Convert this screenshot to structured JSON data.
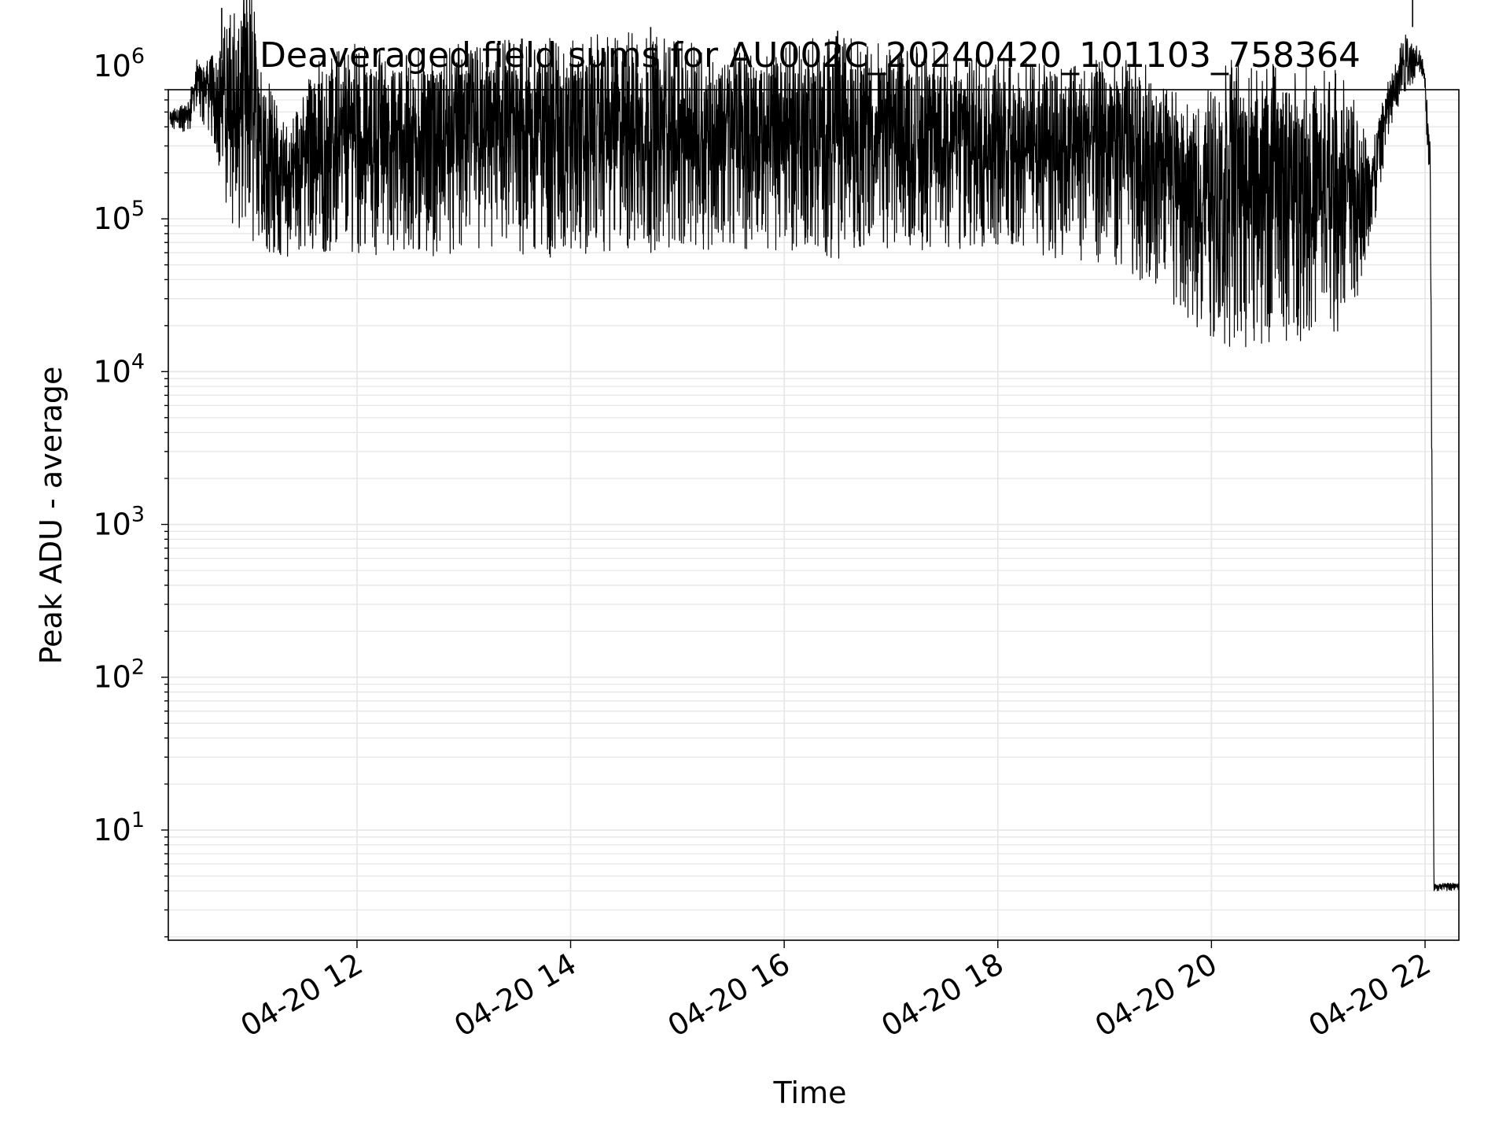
{
  "chart_data": {
    "type": "line",
    "title": "Deaveraged field sums for AU002C_20240420_101103_758364",
    "xlabel": "Time",
    "ylabel": "Peak ADU - average",
    "xscale": "time",
    "yscale": "log",
    "xlim": [
      "2024-04-20T10:14",
      "2024-04-20T22:19"
    ],
    "ylim": [
      1.9,
      700000
    ],
    "x_ticks": [
      {
        "t": "2024-04-20T12:00",
        "label": "04-20 12"
      },
      {
        "t": "2024-04-20T14:00",
        "label": "04-20 14"
      },
      {
        "t": "2024-04-20T16:00",
        "label": "04-20 16"
      },
      {
        "t": "2024-04-20T18:00",
        "label": "04-20 18"
      },
      {
        "t": "2024-04-20T20:00",
        "label": "04-20 20"
      },
      {
        "t": "2024-04-20T22:00",
        "label": "04-20 22"
      }
    ],
    "y_ticks": [
      {
        "value": 10,
        "base": "10",
        "exp": "1"
      },
      {
        "value": 100,
        "base": "10",
        "exp": "2"
      },
      {
        "value": 1000,
        "base": "10",
        "exp": "3"
      },
      {
        "value": 10000,
        "base": "10",
        "exp": "4"
      },
      {
        "value": 100000,
        "base": "10",
        "exp": "5"
      },
      {
        "value": 1000000,
        "base": "10",
        "exp": "6"
      }
    ],
    "grid": true,
    "line_color": "#000000",
    "grid_color": "#e6e6e6",
    "series": [
      {
        "envelope": [
          {
            "t": "2024-04-20T10:15",
            "low": 380000,
            "high": 520000
          },
          {
            "t": "2024-04-20T10:25",
            "low": 350000,
            "high": 600000
          },
          {
            "t": "2024-04-20T10:30",
            "low": 500000,
            "high": 1100000
          },
          {
            "t": "2024-04-20T10:40",
            "low": 300000,
            "high": 1300000
          },
          {
            "t": "2024-04-20T10:50",
            "low": 80000,
            "high": 2500000
          },
          {
            "t": "2024-04-20T11:00",
            "low": 60000,
            "high": 3500000
          },
          {
            "t": "2024-04-20T11:10",
            "low": 60000,
            "high": 900000
          },
          {
            "t": "2024-04-20T11:20",
            "low": 55000,
            "high": 400000
          },
          {
            "t": "2024-04-20T11:30",
            "low": 60000,
            "high": 700000
          },
          {
            "t": "2024-04-20T11:40",
            "low": 60000,
            "high": 1300000
          },
          {
            "t": "2024-04-20T12:00",
            "low": 60000,
            "high": 1400000
          },
          {
            "t": "2024-04-20T12:30",
            "low": 55000,
            "high": 1300000
          },
          {
            "t": "2024-04-20T13:00",
            "low": 60000,
            "high": 1400000
          },
          {
            "t": "2024-04-20T13:30",
            "low": 55000,
            "high": 1500000
          },
          {
            "t": "2024-04-20T14:00",
            "low": 55000,
            "high": 1600000
          },
          {
            "t": "2024-04-20T14:30",
            "low": 60000,
            "high": 1700000
          },
          {
            "t": "2024-04-20T15:00",
            "low": 60000,
            "high": 1500000
          },
          {
            "t": "2024-04-20T15:30",
            "low": 65000,
            "high": 1300000
          },
          {
            "t": "2024-04-20T16:00",
            "low": 60000,
            "high": 1500000
          },
          {
            "t": "2024-04-20T16:30",
            "low": 55000,
            "high": 1600000
          },
          {
            "t": "2024-04-20T17:00",
            "low": 65000,
            "high": 1400000
          },
          {
            "t": "2024-04-20T17:30",
            "low": 60000,
            "high": 1300000
          },
          {
            "t": "2024-04-20T18:00",
            "low": 60000,
            "high": 1200000
          },
          {
            "t": "2024-04-20T18:30",
            "low": 55000,
            "high": 1000000
          },
          {
            "t": "2024-04-20T19:00",
            "low": 50000,
            "high": 1200000
          },
          {
            "t": "2024-04-20T19:30",
            "low": 35000,
            "high": 1000000
          },
          {
            "t": "2024-04-20T19:50",
            "low": 20000,
            "high": 500000
          },
          {
            "t": "2024-04-20T20:10",
            "low": 14000,
            "high": 1200000
          },
          {
            "t": "2024-04-20T20:40",
            "low": 15000,
            "high": 1000000
          },
          {
            "t": "2024-04-20T21:10",
            "low": 16000,
            "high": 1000000
          },
          {
            "t": "2024-04-20T21:20",
            "low": 25000,
            "high": 600000
          },
          {
            "t": "2024-04-20T21:30",
            "low": 70000,
            "high": 300000
          },
          {
            "t": "2024-04-20T21:40",
            "low": 350000,
            "high": 900000
          },
          {
            "t": "2024-04-20T21:50",
            "low": 700000,
            "high": 1800000
          },
          {
            "t": "2024-04-20T21:58",
            "low": 900000,
            "high": 1200000
          },
          {
            "t": "2024-04-20T22:00",
            "low": 600000,
            "high": 900000
          },
          {
            "t": "2024-04-20T22:03",
            "low": 100000,
            "high": 300000
          },
          {
            "t": "2024-04-20T22:05",
            "low": 4,
            "high": 4.5
          },
          {
            "t": "2024-04-20T22:19",
            "low": 4,
            "high": 4.5
          }
        ],
        "peaks": [
          {
            "t": "2024-04-20T10:44",
            "value": 2400000
          },
          {
            "t": "2024-04-20T10:58",
            "value": 3500000
          },
          {
            "t": "2024-04-20T14:45",
            "value": 1800000
          },
          {
            "t": "2024-04-20T16:30",
            "value": 1700000
          },
          {
            "t": "2024-04-20T21:53",
            "value": 1800000
          }
        ]
      }
    ]
  }
}
